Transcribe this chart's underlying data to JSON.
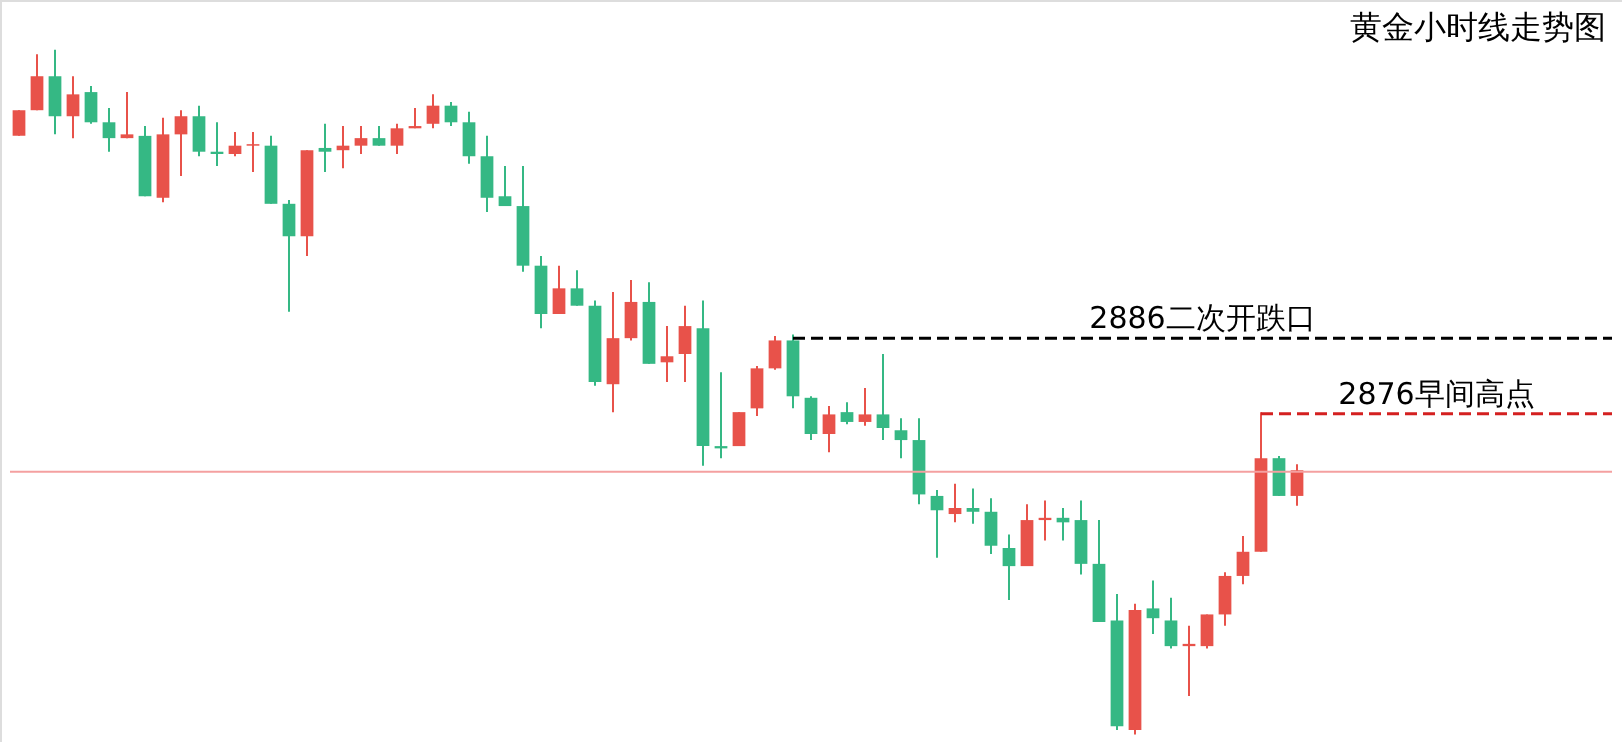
{
  "chart_data": {
    "type": "candlestick",
    "title": "黄金小时线走势图",
    "categories": [
      null,
      null,
      null,
      null,
      null,
      null,
      null,
      null,
      null,
      null,
      null,
      null,
      null,
      null,
      null,
      null,
      null,
      null,
      null,
      null,
      null,
      null,
      null,
      null,
      null,
      null,
      null,
      null,
      null,
      null,
      null,
      null,
      null,
      null,
      null,
      null,
      null,
      null,
      null,
      null,
      null,
      null,
      null,
      null,
      null,
      null,
      null,
      null,
      null,
      null,
      null,
      null,
      null,
      null,
      null,
      null,
      null,
      null,
      null,
      null,
      null,
      null,
      null,
      null,
      null,
      null,
      null,
      null,
      null,
      null,
      null,
      null,
      null,
      null,
      null,
      null,
      null,
      null,
      null,
      null,
      null,
      null,
      null,
      null,
      null,
      null,
      null,
      null,
      null
    ],
    "ohlc": [
      [
        2912.8,
        2916.2,
        2912.8,
        2916.2
      ],
      [
        2916.2,
        2923.6,
        2916.2,
        2920.7
      ],
      [
        2920.7,
        2924.2,
        2913.0,
        2915.4
      ],
      [
        2915.4,
        2920.7,
        2912.5,
        2918.3
      ],
      [
        2918.6,
        2919.4,
        2914.4,
        2914.6
      ],
      [
        2914.6,
        2916.5,
        2910.7,
        2912.5
      ],
      [
        2912.5,
        2918.6,
        2912.5,
        2913.0
      ],
      [
        2912.8,
        2914.1,
        2904.8,
        2904.8
      ],
      [
        2904.6,
        2915.2,
        2904.0,
        2913.0
      ],
      [
        2913.0,
        2916.2,
        2907.5,
        2915.4
      ],
      [
        2915.4,
        2916.8,
        2910.1,
        2910.7
      ],
      [
        2910.7,
        2914.6,
        2908.8,
        2910.4
      ],
      [
        2910.4,
        2913.3,
        2910.1,
        2911.5
      ],
      [
        2911.5,
        2913.3,
        2908.0,
        2911.7
      ],
      [
        2911.5,
        2912.8,
        2903.8,
        2903.8
      ],
      [
        2903.8,
        2904.3,
        2889.5,
        2899.5
      ],
      [
        2899.5,
        2910.9,
        2896.9,
        2910.9
      ],
      [
        2911.2,
        2914.4,
        2908.0,
        2910.7
      ],
      [
        2910.9,
        2914.1,
        2908.5,
        2911.5
      ],
      [
        2911.5,
        2914.1,
        2910.4,
        2912.5
      ],
      [
        2912.5,
        2914.1,
        2911.5,
        2911.5
      ],
      [
        2911.5,
        2914.4,
        2910.4,
        2913.8
      ],
      [
        2913.8,
        2916.5,
        2913.8,
        2914.1
      ],
      [
        2914.4,
        2918.3,
        2913.8,
        2916.8
      ],
      [
        2916.8,
        2917.3,
        2914.1,
        2914.6
      ],
      [
        2914.6,
        2916.0,
        2909.1,
        2910.1
      ],
      [
        2910.1,
        2912.8,
        2902.7,
        2904.6
      ],
      [
        2904.8,
        2908.8,
        2903.5,
        2903.5
      ],
      [
        2903.5,
        2908.8,
        2894.8,
        2895.6
      ],
      [
        2895.6,
        2896.9,
        2887.3,
        2889.2
      ],
      [
        2889.2,
        2895.6,
        2889.2,
        2892.6
      ],
      [
        2892.6,
        2895.0,
        2890.3,
        2890.3
      ],
      [
        2890.3,
        2891.0,
        2879.7,
        2880.2
      ],
      [
        2879.9,
        2892.1,
        2876.2,
        2886.0
      ],
      [
        2886.0,
        2893.7,
        2885.7,
        2890.8
      ],
      [
        2890.8,
        2893.4,
        2882.6,
        2882.6
      ],
      [
        2882.8,
        2887.6,
        2880.2,
        2883.6
      ],
      [
        2883.9,
        2890.3,
        2880.2,
        2887.6
      ],
      [
        2887.3,
        2891.0,
        2869.1,
        2871.7
      ],
      [
        2871.7,
        2881.5,
        2870.1,
        2871.4
      ],
      [
        2871.7,
        2876.2,
        2871.7,
        2876.2
      ],
      [
        2876.7,
        2882.3,
        2875.7,
        2882.0
      ],
      [
        2882.0,
        2886.3,
        2881.8,
        2885.7
      ],
      [
        2885.7,
        2886.5,
        2876.7,
        2878.3
      ],
      [
        2878.1,
        2878.3,
        2872.5,
        2873.3
      ],
      [
        2873.3,
        2877.0,
        2870.9,
        2875.9
      ],
      [
        2876.2,
        2877.5,
        2874.6,
        2874.9
      ],
      [
        2874.9,
        2879.4,
        2874.4,
        2875.9
      ],
      [
        2875.9,
        2883.9,
        2872.5,
        2874.1
      ],
      [
        2873.8,
        2875.4,
        2870.1,
        2872.5
      ],
      [
        2872.5,
        2875.4,
        2864.0,
        2865.3
      ],
      [
        2865.1,
        2865.9,
        2856.9,
        2863.2
      ],
      [
        2862.7,
        2866.7,
        2861.6,
        2863.5
      ],
      [
        2863.5,
        2866.1,
        2861.4,
        2863.0
      ],
      [
        2863.0,
        2864.8,
        2857.4,
        2858.5
      ],
      [
        2858.2,
        2860.0,
        2851.3,
        2855.8
      ],
      [
        2855.8,
        2864.0,
        2855.8,
        2861.9
      ],
      [
        2861.9,
        2864.5,
        2859.2,
        2862.2
      ],
      [
        2862.2,
        2863.5,
        2859.2,
        2861.6
      ],
      [
        2861.9,
        2864.5,
        2854.7,
        2856.1
      ],
      [
        2856.1,
        2861.9,
        2848.4,
        2848.4
      ],
      [
        2848.6,
        2852.1,
        2834.1,
        2834.6
      ],
      [
        2834.1,
        2850.8,
        2833.5,
        2850.0
      ],
      [
        2850.2,
        2853.9,
        2846.8,
        2848.9
      ],
      [
        2848.6,
        2851.6,
        2844.9,
        2845.2
      ],
      [
        2845.2,
        2847.9,
        2838.6,
        2845.5
      ],
      [
        2845.2,
        2849.4,
        2844.9,
        2849.4
      ],
      [
        2849.4,
        2855.0,
        2847.9,
        2854.5
      ],
      [
        2854.5,
        2859.8,
        2853.4,
        2857.7
      ],
      [
        2857.7,
        2876.2,
        2857.7,
        2870.1
      ],
      [
        2870.1,
        2870.4,
        2865.1,
        2865.1
      ],
      [
        2865.1,
        2869.3,
        2863.8,
        2868.5
      ],
      null,
      null,
      null,
      null,
      null,
      null,
      null,
      null,
      null,
      null,
      null,
      null,
      null,
      null,
      null,
      null,
      null
    ],
    "colors": [
      "#e8524a",
      "#e8524a",
      "#35b884",
      "#e8524a",
      "#35b884",
      "#35b884",
      "#e8524a",
      "#35b884",
      "#e8524a",
      "#e8524a",
      "#35b884",
      "#35b884",
      "#e8524a",
      "#e8524a",
      "#35b884",
      "#35b884",
      "#e8524a",
      "#35b884",
      "#e8524a",
      "#e8524a",
      "#35b884",
      "#e8524a",
      "#e8524a",
      "#e8524a",
      "#35b884",
      "#35b884",
      "#35b884",
      "#35b884",
      "#35b884",
      "#35b884",
      "#e8524a",
      "#35b884",
      "#35b884",
      "#e8524a",
      "#e8524a",
      "#35b884",
      "#e8524a",
      "#e8524a",
      "#35b884",
      "#35b884",
      "#e8524a",
      "#e8524a",
      "#e8524a",
      "#35b884",
      "#35b884",
      "#e8524a",
      "#35b884",
      "#e8524a",
      "#35b884",
      "#35b884",
      "#35b884",
      "#35b884",
      "#e8524a",
      "#35b884",
      "#35b884",
      "#35b884",
      "#e8524a",
      "#e8524a",
      "#35b884",
      "#35b884",
      "#35b884",
      "#35b884",
      "#e8524a",
      "#35b884",
      "#35b884",
      "#e8524a",
      "#e8524a",
      "#e8524a",
      "#e8524a",
      "#e8524a",
      "#35b884",
      "#e8524a",
      null,
      null,
      null,
      null,
      null,
      null,
      null,
      null,
      null,
      null,
      null,
      null,
      null,
      null,
      null,
      null,
      null
    ],
    "ylim": [
      2832.5,
      2930.8
    ],
    "tick_labels": false,
    "ref_lines": [
      {
        "axis": "y",
        "value": 2886,
        "label": "2886二次开跌口",
        "color": "#000000",
        "line_style": "dashed"
      },
      {
        "axis": "y",
        "value": 2876,
        "label": "2876早间高点",
        "color": "#d42020",
        "line_style": "dashed"
      },
      {
        "axis": "y",
        "value": 2868.3,
        "color": "#f4a0a0",
        "line_style": "solid"
      }
    ]
  }
}
